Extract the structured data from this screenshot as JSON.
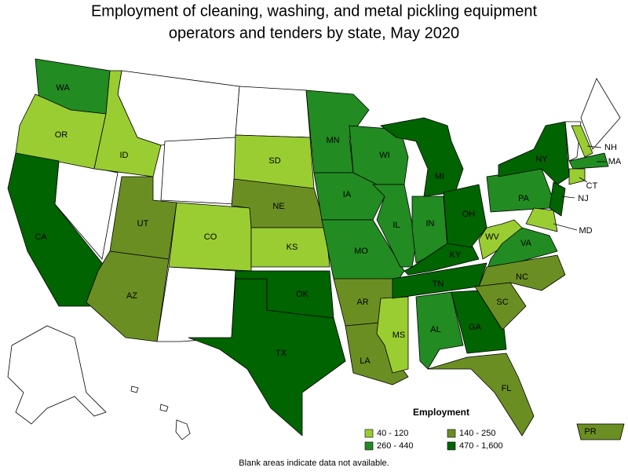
{
  "title": [
    "Employment of cleaning, washing, and metal pickling equipment",
    "operators and tenders by state, May 2020"
  ],
  "states": [
    {
      "label": "WA",
      "category": 1
    },
    {
      "label": "OR",
      "category": 0
    },
    {
      "label": "CA",
      "category": 3
    },
    {
      "label": "ID",
      "category": 0
    },
    {
      "label": "UT",
      "category": 2
    },
    {
      "label": "AZ",
      "category": 2
    },
    {
      "label": "CO",
      "category": 0
    },
    {
      "label": "SD",
      "category": 0
    },
    {
      "label": "NE",
      "category": 2
    },
    {
      "label": "KS",
      "category": 0
    },
    {
      "label": "TX",
      "category": 3
    },
    {
      "label": "OK",
      "category": 3
    },
    {
      "label": "MN",
      "category": 1
    },
    {
      "label": "IA",
      "category": 1
    },
    {
      "label": "MO",
      "category": 1
    },
    {
      "label": "AR",
      "category": 2
    },
    {
      "label": "LA",
      "category": 2
    },
    {
      "label": "WI",
      "category": 1
    },
    {
      "label": "IL",
      "category": 1
    },
    {
      "label": "MS",
      "category": 0
    },
    {
      "label": "MI",
      "category": 3
    },
    {
      "label": "IN",
      "category": 1
    },
    {
      "label": "KY",
      "category": 3
    },
    {
      "label": "TN",
      "category": 3
    },
    {
      "label": "AL",
      "category": 1
    },
    {
      "label": "GA",
      "category": 3
    },
    {
      "label": "FL",
      "category": 2
    },
    {
      "label": "OH",
      "category": 3
    },
    {
      "label": "WV",
      "category": 0
    },
    {
      "label": "VA",
      "category": 1
    },
    {
      "label": "NC",
      "category": 2
    },
    {
      "label": "SC",
      "category": 2
    },
    {
      "label": "PA",
      "category": 1
    },
    {
      "label": "NY",
      "category": 3
    },
    {
      "label": "NH",
      "category": 0
    },
    {
      "label": "MA",
      "category": 1
    },
    {
      "label": "CT",
      "category": 0
    },
    {
      "label": "NJ",
      "category": 3
    },
    {
      "label": "MD",
      "category": 0
    },
    {
      "label": "PR",
      "category": 2
    }
  ],
  "legend": {
    "title": "Employment",
    "items": [
      {
        "label": "40 - 120",
        "color": "#9acd32"
      },
      {
        "label": "260 - 440",
        "color": "#228b22"
      },
      {
        "label": "140 - 250",
        "color": "#6b8e23"
      },
      {
        "label": "470 - 1,600",
        "color": "#006400"
      }
    ]
  },
  "footnote": "Blank areas indicate data not available."
}
